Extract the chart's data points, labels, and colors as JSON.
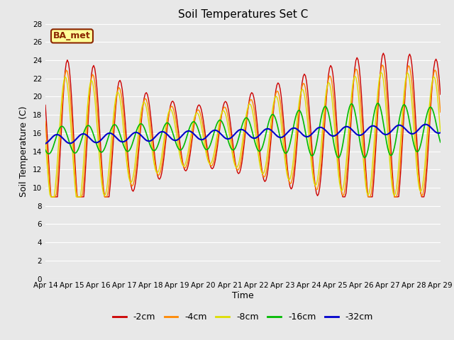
{
  "title": "Soil Temperatures Set C",
  "xlabel": "Time",
  "ylabel": "Soil Temperature (C)",
  "ylim": [
    0,
    28
  ],
  "yticks": [
    0,
    2,
    4,
    6,
    8,
    10,
    12,
    14,
    16,
    18,
    20,
    22,
    24,
    26,
    28
  ],
  "x_labels": [
    "Apr 14",
    "Apr 15",
    "Apr 16",
    "Apr 17",
    "Apr 18",
    "Apr 19",
    "Apr 20",
    "Apr 21",
    "Apr 22",
    "Apr 23",
    "Apr 24",
    "Apr 25",
    "Apr 26",
    "Apr 27",
    "Apr 28",
    "Apr 29"
  ],
  "annotation_text": "BA_met",
  "annotation_bg": "#FFFF99",
  "annotation_border": "#8B2500",
  "line_colors": {
    "-2cm": "#CC0000",
    "-4cm": "#FF8800",
    "-8cm": "#DDDD00",
    "-16cm": "#00BB00",
    "-32cm": "#0000CC"
  },
  "bg_color": "#E8E8E8",
  "plot_bg": "#E8E8E8",
  "grid_color": "#FFFFFF",
  "figsize": [
    6.4,
    4.8
  ],
  "dpi": 100
}
